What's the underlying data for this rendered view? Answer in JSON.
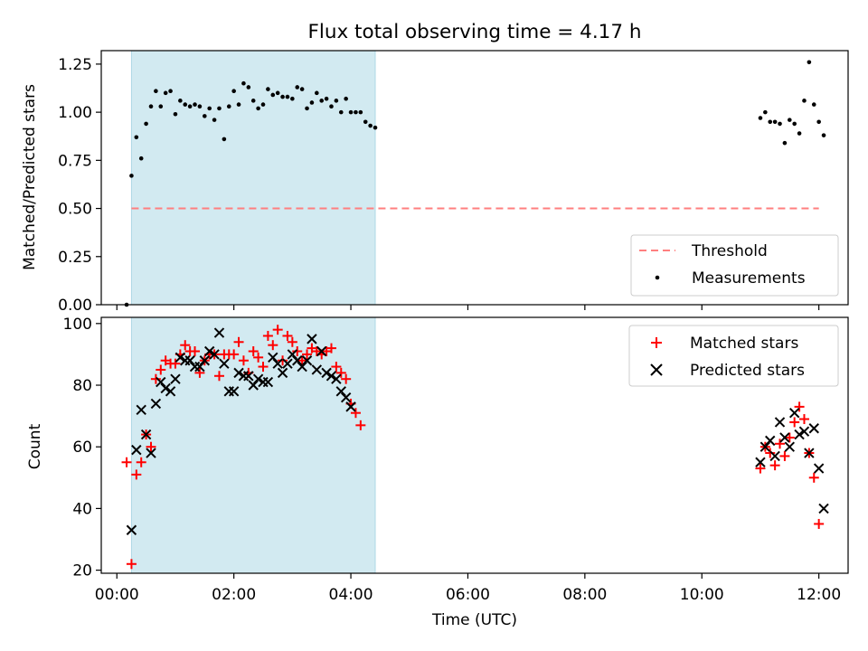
{
  "figure": {
    "title": "Flux total observing time = 4.17 h"
  },
  "colors": {
    "shade": "#add8e6",
    "threshold": "#ff7f7f",
    "measurement": "#000000",
    "matched": "#ff0000",
    "predicted": "#000000"
  },
  "chart_data": [
    {
      "type": "scatter",
      "panel": "top",
      "title": "Flux total observing time = 4.17 h",
      "xlabel": "",
      "ylabel": "Matched/Predicted stars",
      "xlim": [
        "23:44",
        "12:30"
      ],
      "ylim": [
        0,
        1.32
      ],
      "x_ticks": [
        "00:00",
        "02:00",
        "04:00",
        "06:00",
        "08:00",
        "10:00",
        "12:00"
      ],
      "y_ticks": [
        "0.00",
        "0.25",
        "0.50",
        "0.75",
        "1.00",
        "1.25"
      ],
      "shaded_interval": [
        "00:15",
        "04:25"
      ],
      "threshold": {
        "name": "Threshold",
        "value": 0.5,
        "x_range": [
          "00:15",
          "12:00"
        ],
        "style": "dashed"
      },
      "legend_position": "lower-right",
      "series": [
        {
          "name": "Measurements",
          "marker": "dot",
          "points": [
            [
              "00:10",
              0.0
            ],
            [
              "00:15",
              0.67
            ],
            [
              "00:20",
              0.87
            ],
            [
              "00:25",
              0.76
            ],
            [
              "00:30",
              0.94
            ],
            [
              "00:35",
              1.03
            ],
            [
              "00:40",
              1.11
            ],
            [
              "00:45",
              1.03
            ],
            [
              "00:50",
              1.1
            ],
            [
              "00:55",
              1.11
            ],
            [
              "01:00",
              0.99
            ],
            [
              "01:05",
              1.06
            ],
            [
              "01:10",
              1.04
            ],
            [
              "01:15",
              1.03
            ],
            [
              "01:20",
              1.04
            ],
            [
              "01:25",
              1.03
            ],
            [
              "01:30",
              0.98
            ],
            [
              "01:35",
              1.02
            ],
            [
              "01:40",
              0.96
            ],
            [
              "01:45",
              1.02
            ],
            [
              "01:50",
              0.86
            ],
            [
              "01:55",
              1.03
            ],
            [
              "02:00",
              1.11
            ],
            [
              "02:05",
              1.04
            ],
            [
              "02:10",
              1.15
            ],
            [
              "02:15",
              1.13
            ],
            [
              "02:20",
              1.06
            ],
            [
              "02:25",
              1.02
            ],
            [
              "02:30",
              1.04
            ],
            [
              "02:35",
              1.12
            ],
            [
              "02:40",
              1.09
            ],
            [
              "02:45",
              1.1
            ],
            [
              "02:50",
              1.08
            ],
            [
              "02:55",
              1.08
            ],
            [
              "03:00",
              1.07
            ],
            [
              "03:05",
              1.13
            ],
            [
              "03:10",
              1.12
            ],
            [
              "03:15",
              1.02
            ],
            [
              "03:20",
              1.05
            ],
            [
              "03:25",
              1.1
            ],
            [
              "03:30",
              1.06
            ],
            [
              "03:35",
              1.07
            ],
            [
              "03:40",
              1.03
            ],
            [
              "03:45",
              1.06
            ],
            [
              "03:50",
              1.0
            ],
            [
              "03:55",
              1.07
            ],
            [
              "04:00",
              1.0
            ],
            [
              "04:05",
              1.0
            ],
            [
              "04:10",
              1.0
            ],
            [
              "04:15",
              0.95
            ],
            [
              "04:20",
              0.93
            ],
            [
              "04:25",
              0.92
            ],
            [
              "11:00",
              0.97
            ],
            [
              "11:05",
              1.0
            ],
            [
              "11:10",
              0.95
            ],
            [
              "11:15",
              0.95
            ],
            [
              "11:20",
              0.94
            ],
            [
              "11:25",
              0.84
            ],
            [
              "11:30",
              0.96
            ],
            [
              "11:35",
              0.94
            ],
            [
              "11:40",
              0.89
            ],
            [
              "11:45",
              1.06
            ],
            [
              "11:50",
              1.26
            ],
            [
              "11:55",
              1.04
            ],
            [
              "12:00",
              0.95
            ],
            [
              "12:05",
              0.88
            ]
          ]
        }
      ]
    },
    {
      "type": "scatter",
      "panel": "bottom",
      "xlabel": "Time (UTC)",
      "ylabel": "Count",
      "xlim": [
        "23:44",
        "12:30"
      ],
      "ylim": [
        19,
        102
      ],
      "x_ticks": [
        "00:00",
        "02:00",
        "04:00",
        "06:00",
        "08:00",
        "10:00",
        "12:00"
      ],
      "y_ticks": [
        "20",
        "40",
        "60",
        "80",
        "100"
      ],
      "shaded_interval": [
        "00:15",
        "04:25"
      ],
      "legend_position": "upper-right",
      "series": [
        {
          "name": "Matched stars",
          "marker": "plus",
          "points": [
            [
              "00:10",
              55
            ],
            [
              "00:15",
              22
            ],
            [
              "00:20",
              51
            ],
            [
              "00:25",
              55
            ],
            [
              "00:30",
              64
            ],
            [
              "00:35",
              60
            ],
            [
              "00:40",
              82
            ],
            [
              "00:45",
              85
            ],
            [
              "00:50",
              88
            ],
            [
              "00:55",
              87
            ],
            [
              "01:00",
              87
            ],
            [
              "01:05",
              90
            ],
            [
              "01:10",
              93
            ],
            [
              "01:15",
              91
            ],
            [
              "01:20",
              91
            ],
            [
              "01:25",
              84
            ],
            [
              "01:30",
              88
            ],
            [
              "01:35",
              90
            ],
            [
              "01:40",
              90
            ],
            [
              "01:45",
              83
            ],
            [
              "01:50",
              90
            ],
            [
              "01:55",
              90
            ],
            [
              "02:00",
              90
            ],
            [
              "02:05",
              94
            ],
            [
              "02:10",
              88
            ],
            [
              "02:15",
              84
            ],
            [
              "02:20",
              91
            ],
            [
              "02:25",
              89
            ],
            [
              "02:30",
              86
            ],
            [
              "02:35",
              96
            ],
            [
              "02:40",
              93
            ],
            [
              "02:45",
              98
            ],
            [
              "02:50",
              88
            ],
            [
              "02:55",
              96
            ],
            [
              "03:00",
              94
            ],
            [
              "03:05",
              91
            ],
            [
              "03:10",
              88
            ],
            [
              "03:15",
              90
            ],
            [
              "03:20",
              92
            ],
            [
              "03:25",
              91
            ],
            [
              "03:30",
              90
            ],
            [
              "03:35",
              91
            ],
            [
              "03:40",
              92
            ],
            [
              "03:45",
              86
            ],
            [
              "03:50",
              84
            ],
            [
              "03:55",
              82
            ],
            [
              "04:00",
              74
            ],
            [
              "04:05",
              71
            ],
            [
              "04:10",
              67
            ],
            [
              "11:00",
              53
            ],
            [
              "11:05",
              60
            ],
            [
              "11:10",
              58
            ],
            [
              "11:15",
              54
            ],
            [
              "11:20",
              61
            ],
            [
              "11:25",
              57
            ],
            [
              "11:30",
              63
            ],
            [
              "11:35",
              68
            ],
            [
              "11:40",
              73
            ],
            [
              "11:45",
              69
            ],
            [
              "11:50",
              58
            ],
            [
              "11:55",
              50
            ],
            [
              "12:00",
              35
            ]
          ]
        },
        {
          "name": "Predicted stars",
          "marker": "x",
          "points": [
            [
              "00:15",
              33
            ],
            [
              "00:20",
              59
            ],
            [
              "00:25",
              72
            ],
            [
              "00:30",
              64
            ],
            [
              "00:35",
              58
            ],
            [
              "00:40",
              74
            ],
            [
              "00:45",
              81
            ],
            [
              "00:50",
              79
            ],
            [
              "00:55",
              78
            ],
            [
              "01:00",
              82
            ],
            [
              "01:05",
              89
            ],
            [
              "01:10",
              88
            ],
            [
              "01:15",
              88
            ],
            [
              "01:20",
              86
            ],
            [
              "01:25",
              86
            ],
            [
              "01:30",
              88
            ],
            [
              "01:35",
              91
            ],
            [
              "01:40",
              90
            ],
            [
              "01:45",
              97
            ],
            [
              "01:50",
              87
            ],
            [
              "01:55",
              78
            ],
            [
              "02:00",
              78
            ],
            [
              "02:05",
              84
            ],
            [
              "02:10",
              83
            ],
            [
              "02:15",
              83
            ],
            [
              "02:20",
              80
            ],
            [
              "02:25",
              82
            ],
            [
              "02:30",
              81
            ],
            [
              "02:35",
              81
            ],
            [
              "02:40",
              89
            ],
            [
              "02:45",
              87
            ],
            [
              "02:50",
              84
            ],
            [
              "02:55",
              87
            ],
            [
              "03:00",
              90
            ],
            [
              "03:05",
              88
            ],
            [
              "03:10",
              86
            ],
            [
              "03:15",
              88
            ],
            [
              "03:20",
              95
            ],
            [
              "03:25",
              85
            ],
            [
              "03:30",
              91
            ],
            [
              "03:35",
              84
            ],
            [
              "03:40",
              83
            ],
            [
              "03:45",
              82
            ],
            [
              "03:50",
              78
            ],
            [
              "03:55",
              76
            ],
            [
              "04:00",
              73
            ],
            [
              "11:00",
              55
            ],
            [
              "11:05",
              60
            ],
            [
              "11:10",
              62
            ],
            [
              "11:15",
              57
            ],
            [
              "11:20",
              68
            ],
            [
              "11:25",
              63
            ],
            [
              "11:30",
              60
            ],
            [
              "11:35",
              71
            ],
            [
              "11:40",
              64
            ],
            [
              "11:45",
              65
            ],
            [
              "11:50",
              58
            ],
            [
              "11:55",
              66
            ],
            [
              "12:00",
              53
            ],
            [
              "12:05",
              40
            ]
          ]
        }
      ]
    }
  ]
}
